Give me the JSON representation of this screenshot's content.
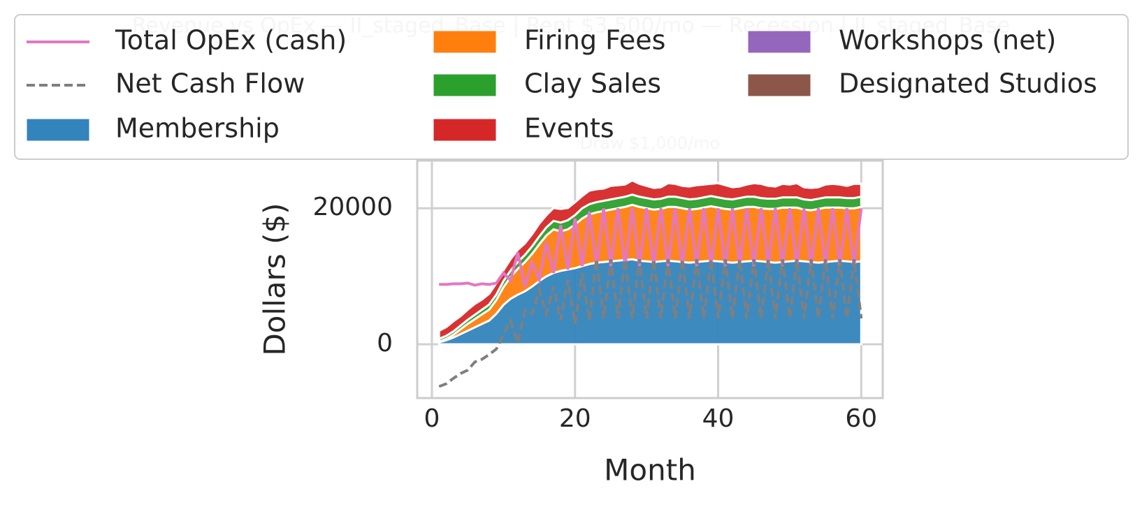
{
  "chart_data": {
    "type": "stacked_area",
    "title": [
      "Revenue vs OpEx — II_staged_Base | Rent $3,500/mo — Recession | II_staged_Base",
      "Draw $1,000/mo"
    ],
    "xlabel": "Month",
    "ylabel": "Dollars ($)",
    "x": [
      1,
      2,
      3,
      4,
      5,
      6,
      7,
      8,
      9,
      10,
      11,
      12,
      13,
      14,
      15,
      16,
      17,
      18,
      19,
      20,
      21,
      22,
      23,
      24,
      25,
      26,
      27,
      28,
      29,
      30,
      31,
      32,
      33,
      34,
      35,
      36,
      37,
      38,
      39,
      40,
      41,
      42,
      43,
      44,
      45,
      46,
      47,
      48,
      49,
      50,
      51,
      52,
      53,
      54,
      55,
      56,
      57,
      58,
      59,
      60
    ],
    "xlim": [
      -2.05,
      63.0
    ],
    "xticks": [
      0,
      20,
      40,
      60
    ],
    "ylim": [
      -7900,
      27000
    ],
    "yticks": [
      0,
      20000
    ],
    "grid": true,
    "legend": "upper center",
    "series": [
      {
        "name": "Total OpEx (cash)",
        "kind": "line",
        "color": "#e377c2",
        "values": [
          8800,
          8800,
          8900,
          8900,
          9000,
          8700,
          8900,
          8800,
          9000,
          10500,
          9400,
          13500,
          8500,
          12000,
          9500,
          15000,
          10500,
          17500,
          11000,
          18500,
          11500,
          19500,
          11500,
          20000,
          11500,
          20000,
          11500,
          20000,
          11500,
          20000,
          11500,
          20000,
          11500,
          20000,
          11500,
          20000,
          11500,
          20000,
          11500,
          20000,
          11500,
          20000,
          11500,
          20000,
          11500,
          20000,
          11500,
          20000,
          11500,
          20000,
          11500,
          20000,
          11500,
          20000,
          11500,
          20000,
          11500,
          20000,
          11500,
          20000
        ]
      },
      {
        "name": "Net Cash Flow",
        "kind": "dashed",
        "color": "#7f7f7f",
        "values": [
          -6200,
          -5800,
          -5000,
          -4300,
          -3800,
          -2600,
          -2200,
          -1500,
          -700,
          1500,
          3500,
          200,
          5000,
          4500,
          8000,
          4500,
          8500,
          3500,
          9500,
          3000,
          10500,
          3500,
          12500,
          3800,
          12500,
          3800,
          12500,
          3800,
          12500,
          3800,
          12500,
          3800,
          12500,
          3800,
          12500,
          3800,
          12500,
          3800,
          12500,
          3800,
          12500,
          3800,
          12500,
          3800,
          12500,
          3800,
          12500,
          3800,
          12500,
          3800,
          12500,
          3800,
          12500,
          3800,
          12500,
          3800,
          12500,
          3800,
          12500,
          3800
        ]
      },
      {
        "name": "Membership",
        "kind": "area",
        "color": "#3384bc",
        "values": [
          300,
          600,
          1000,
          1500,
          2000,
          2500,
          3000,
          3500,
          4500,
          5800,
          6700,
          7300,
          7800,
          8500,
          9300,
          10000,
          10500,
          10800,
          11000,
          11200,
          11500,
          11800,
          12000,
          12100,
          12200,
          12300,
          12400,
          12500,
          12300,
          12200,
          12100,
          12200,
          12300,
          12200,
          12100,
          12000,
          12100,
          12200,
          12300,
          12200,
          12100,
          12000,
          12100,
          12200,
          12300,
          12200,
          12100,
          12000,
          12100,
          12200,
          12300,
          12200,
          12100,
          12000,
          12100,
          12200,
          12300,
          12200,
          12100,
          12200
        ]
      },
      {
        "name": "Firing Fees",
        "kind": "area",
        "color": "#ff7f0e",
        "values": [
          100,
          200,
          400,
          700,
          1000,
          1200,
          1400,
          1600,
          2000,
          2600,
          3200,
          3800,
          4300,
          4800,
          5400,
          6000,
          6400,
          5800,
          5900,
          6400,
          7000,
          7300,
          7400,
          7500,
          7600,
          7700,
          7800,
          8000,
          7900,
          7800,
          7700,
          7700,
          7900,
          8000,
          7900,
          7800,
          7800,
          7900,
          8000,
          7900,
          7800,
          7800,
          7900,
          8000,
          7900,
          7800,
          7800,
          7900,
          8000,
          7900,
          7800,
          7600,
          7600,
          7900,
          8000,
          7900,
          7800,
          7800,
          7900,
          8000
        ]
      },
      {
        "name": "Clay Sales",
        "kind": "area",
        "color": "#2ca02c",
        "values": [
          400,
          450,
          500,
          550,
          600,
          650,
          700,
          750,
          800,
          900,
          950,
          1000,
          1050,
          1100,
          1150,
          1200,
          1250,
          1300,
          1350,
          1400,
          1500,
          1500,
          1500,
          1500,
          1500,
          1500,
          1500,
          1500,
          1500,
          1500,
          1500,
          1500,
          1500,
          1500,
          1500,
          1500,
          1500,
          1500,
          1500,
          1500,
          1500,
          1500,
          1500,
          1500,
          1500,
          1500,
          1500,
          1500,
          1500,
          1500,
          1500,
          1500,
          1500,
          1500,
          1500,
          1500,
          1500,
          1500,
          1500,
          1500
        ]
      },
      {
        "name": "Events",
        "kind": "area",
        "color": "#d62728",
        "values": [
          1200,
          1300,
          1500,
          1400,
          1500,
          1600,
          1500,
          1600,
          1700,
          1600,
          1700,
          1800,
          1700,
          1800,
          1900,
          1800,
          1900,
          2000,
          1800,
          1900,
          1800,
          2000,
          1900,
          1800,
          2000,
          1900,
          1800,
          2100,
          1900,
          1800,
          1700,
          1700,
          2000,
          1900,
          1800,
          1900,
          2000,
          1900,
          1800,
          2100,
          2000,
          1800,
          1700,
          1800,
          2000,
          2100,
          1900,
          1800,
          2000,
          1900,
          2100,
          1800,
          1800,
          1700,
          1900,
          2000,
          1900,
          1800,
          2100,
          1900
        ]
      },
      {
        "name": "Workshops (net)",
        "kind": "area",
        "color": "#9467bd",
        "values": [
          0,
          0,
          0,
          0,
          0,
          0,
          0,
          0,
          0,
          0,
          0,
          0,
          0,
          0,
          0,
          0,
          0,
          0,
          0,
          0,
          0,
          0,
          0,
          0,
          0,
          0,
          0,
          0,
          0,
          0,
          0,
          0,
          0,
          0,
          0,
          0,
          0,
          0,
          0,
          0,
          0,
          0,
          0,
          0,
          0,
          0,
          0,
          0,
          0,
          0,
          0,
          0,
          0,
          0,
          0,
          0,
          0,
          0,
          0,
          0
        ]
      },
      {
        "name": "Designated Studios",
        "kind": "area",
        "color": "#8c564b",
        "values": [
          0,
          0,
          0,
          0,
          0,
          0,
          0,
          0,
          0,
          0,
          0,
          0,
          0,
          0,
          0,
          0,
          0,
          0,
          0,
          0,
          0,
          0,
          0,
          0,
          0,
          0,
          0,
          0,
          0,
          0,
          0,
          0,
          0,
          0,
          0,
          0,
          0,
          0,
          0,
          0,
          0,
          0,
          0,
          0,
          0,
          0,
          0,
          0,
          0,
          0,
          0,
          0,
          0,
          0,
          0,
          0,
          0,
          0,
          0,
          0
        ]
      }
    ]
  }
}
